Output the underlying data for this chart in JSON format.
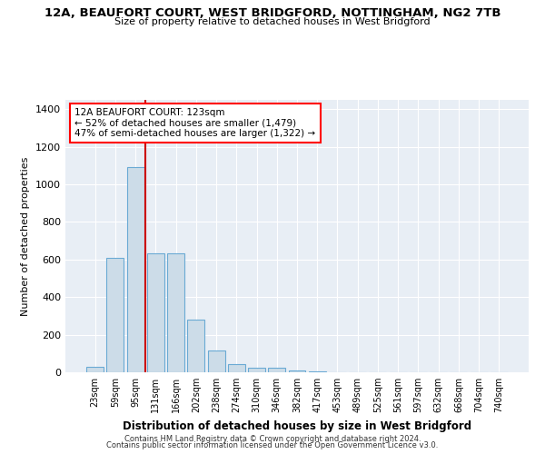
{
  "title": "12A, BEAUFORT COURT, WEST BRIDGFORD, NOTTINGHAM, NG2 7TB",
  "subtitle": "Size of property relative to detached houses in West Bridgford",
  "xlabel": "Distribution of detached houses by size in West Bridgford",
  "ylabel": "Number of detached properties",
  "bar_color": "#ccdce8",
  "bar_edge_color": "#6aaad4",
  "categories": [
    "23sqm",
    "59sqm",
    "95sqm",
    "131sqm",
    "166sqm",
    "202sqm",
    "238sqm",
    "274sqm",
    "310sqm",
    "346sqm",
    "382sqm",
    "417sqm",
    "453sqm",
    "489sqm",
    "525sqm",
    "561sqm",
    "597sqm",
    "632sqm",
    "668sqm",
    "704sqm",
    "740sqm"
  ],
  "values": [
    30,
    610,
    1090,
    635,
    635,
    280,
    115,
    45,
    22,
    22,
    12,
    3,
    2,
    1,
    1,
    1,
    0,
    0,
    0,
    0,
    0
  ],
  "vline_x": 2.5,
  "vline_color": "#cc0000",
  "annotation_line1": "12A BEAUFORT COURT: 123sqm",
  "annotation_line2": "← 52% of detached houses are smaller (1,479)",
  "annotation_line3": "47% of semi-detached houses are larger (1,322) →",
  "annotation_box_color": "white",
  "annotation_edge_color": "red",
  "ylim": [
    0,
    1450
  ],
  "yticks": [
    0,
    200,
    400,
    600,
    800,
    1000,
    1200,
    1400
  ],
  "background_color": "#e8eef5",
  "grid_color": "#ffffff",
  "footer1": "Contains HM Land Registry data © Crown copyright and database right 2024.",
  "footer2": "Contains public sector information licensed under the Open Government Licence v3.0."
}
